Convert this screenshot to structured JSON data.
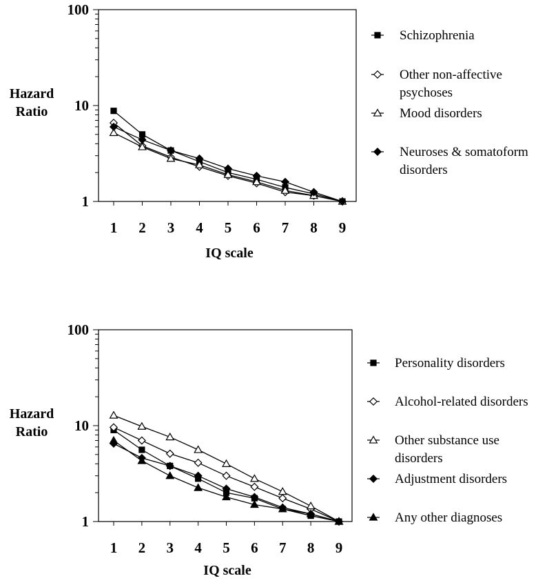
{
  "chart_data": [
    {
      "type": "line",
      "yscale": "log",
      "ylim": [
        1,
        100
      ],
      "yticks": [
        "1",
        "10",
        "100"
      ],
      "ylabel": [
        "Hazard",
        "Ratio"
      ],
      "xlabel": "IQ scale",
      "xlim": [
        1,
        9
      ],
      "x": [
        1,
        2,
        3,
        4,
        5,
        6,
        7,
        8,
        9
      ],
      "xticks": [
        "1",
        "2",
        "3",
        "4",
        "5",
        "6",
        "7",
        "8",
        "9"
      ],
      "legend_position": "right",
      "series": [
        {
          "name": [
            "Schizophrenia"
          ],
          "marker": "square",
          "values": [
            8.8,
            5.0,
            3.4,
            2.6,
            2.0,
            1.7,
            1.4,
            1.2,
            1.0
          ]
        },
        {
          "name": [
            "Other non-affective",
            "psychoses"
          ],
          "marker": "diamond-open",
          "values": [
            6.6,
            3.8,
            2.9,
            2.3,
            1.85,
            1.55,
            1.25,
            1.15,
            1.0
          ]
        },
        {
          "name": [
            "Mood disorders"
          ],
          "marker": "triangle-open",
          "values": [
            5.2,
            3.7,
            2.8,
            2.4,
            1.9,
            1.6,
            1.3,
            1.15,
            1.0
          ]
        },
        {
          "name": [
            "Neuroses & somatoform",
            "disorders"
          ],
          "marker": "diamond",
          "values": [
            6.0,
            4.4,
            3.4,
            2.8,
            2.2,
            1.85,
            1.6,
            1.25,
            1.0
          ]
        }
      ]
    },
    {
      "type": "line",
      "yscale": "log",
      "ylim": [
        1,
        100
      ],
      "yticks": [
        "1",
        "10",
        "100"
      ],
      "ylabel": [
        "Hazard",
        "Ratio"
      ],
      "xlabel": "IQ scale",
      "xlim": [
        1,
        9
      ],
      "x": [
        1,
        2,
        3,
        4,
        5,
        6,
        7,
        8,
        9
      ],
      "xticks": [
        "1",
        "2",
        "3",
        "4",
        "5",
        "6",
        "7",
        "8",
        "9"
      ],
      "legend_position": "right",
      "series": [
        {
          "name": [
            "Personality disorders"
          ],
          "marker": "square",
          "values": [
            9.0,
            5.6,
            3.8,
            2.8,
            2.0,
            1.75,
            1.35,
            1.15,
            1.0
          ]
        },
        {
          "name": [
            "Alcohol-related disorders"
          ],
          "marker": "diamond-open",
          "values": [
            9.6,
            7.0,
            5.1,
            4.1,
            3.0,
            2.3,
            1.75,
            1.35,
            1.0
          ]
        },
        {
          "name": [
            "Other substance use",
            "disorders"
          ],
          "marker": "triangle-open",
          "values": [
            12.8,
            9.8,
            7.6,
            5.6,
            4.0,
            2.8,
            2.05,
            1.45,
            1.0
          ]
        },
        {
          "name": [
            "Adjustment disorders"
          ],
          "marker": "diamond",
          "values": [
            6.5,
            4.6,
            3.8,
            3.0,
            2.2,
            1.8,
            1.4,
            1.2,
            1.0
          ]
        },
        {
          "name": [
            "Any other diagnoses"
          ],
          "marker": "triangle",
          "values": [
            7.0,
            4.3,
            3.0,
            2.25,
            1.8,
            1.5,
            1.35,
            1.2,
            1.0
          ]
        }
      ]
    }
  ]
}
